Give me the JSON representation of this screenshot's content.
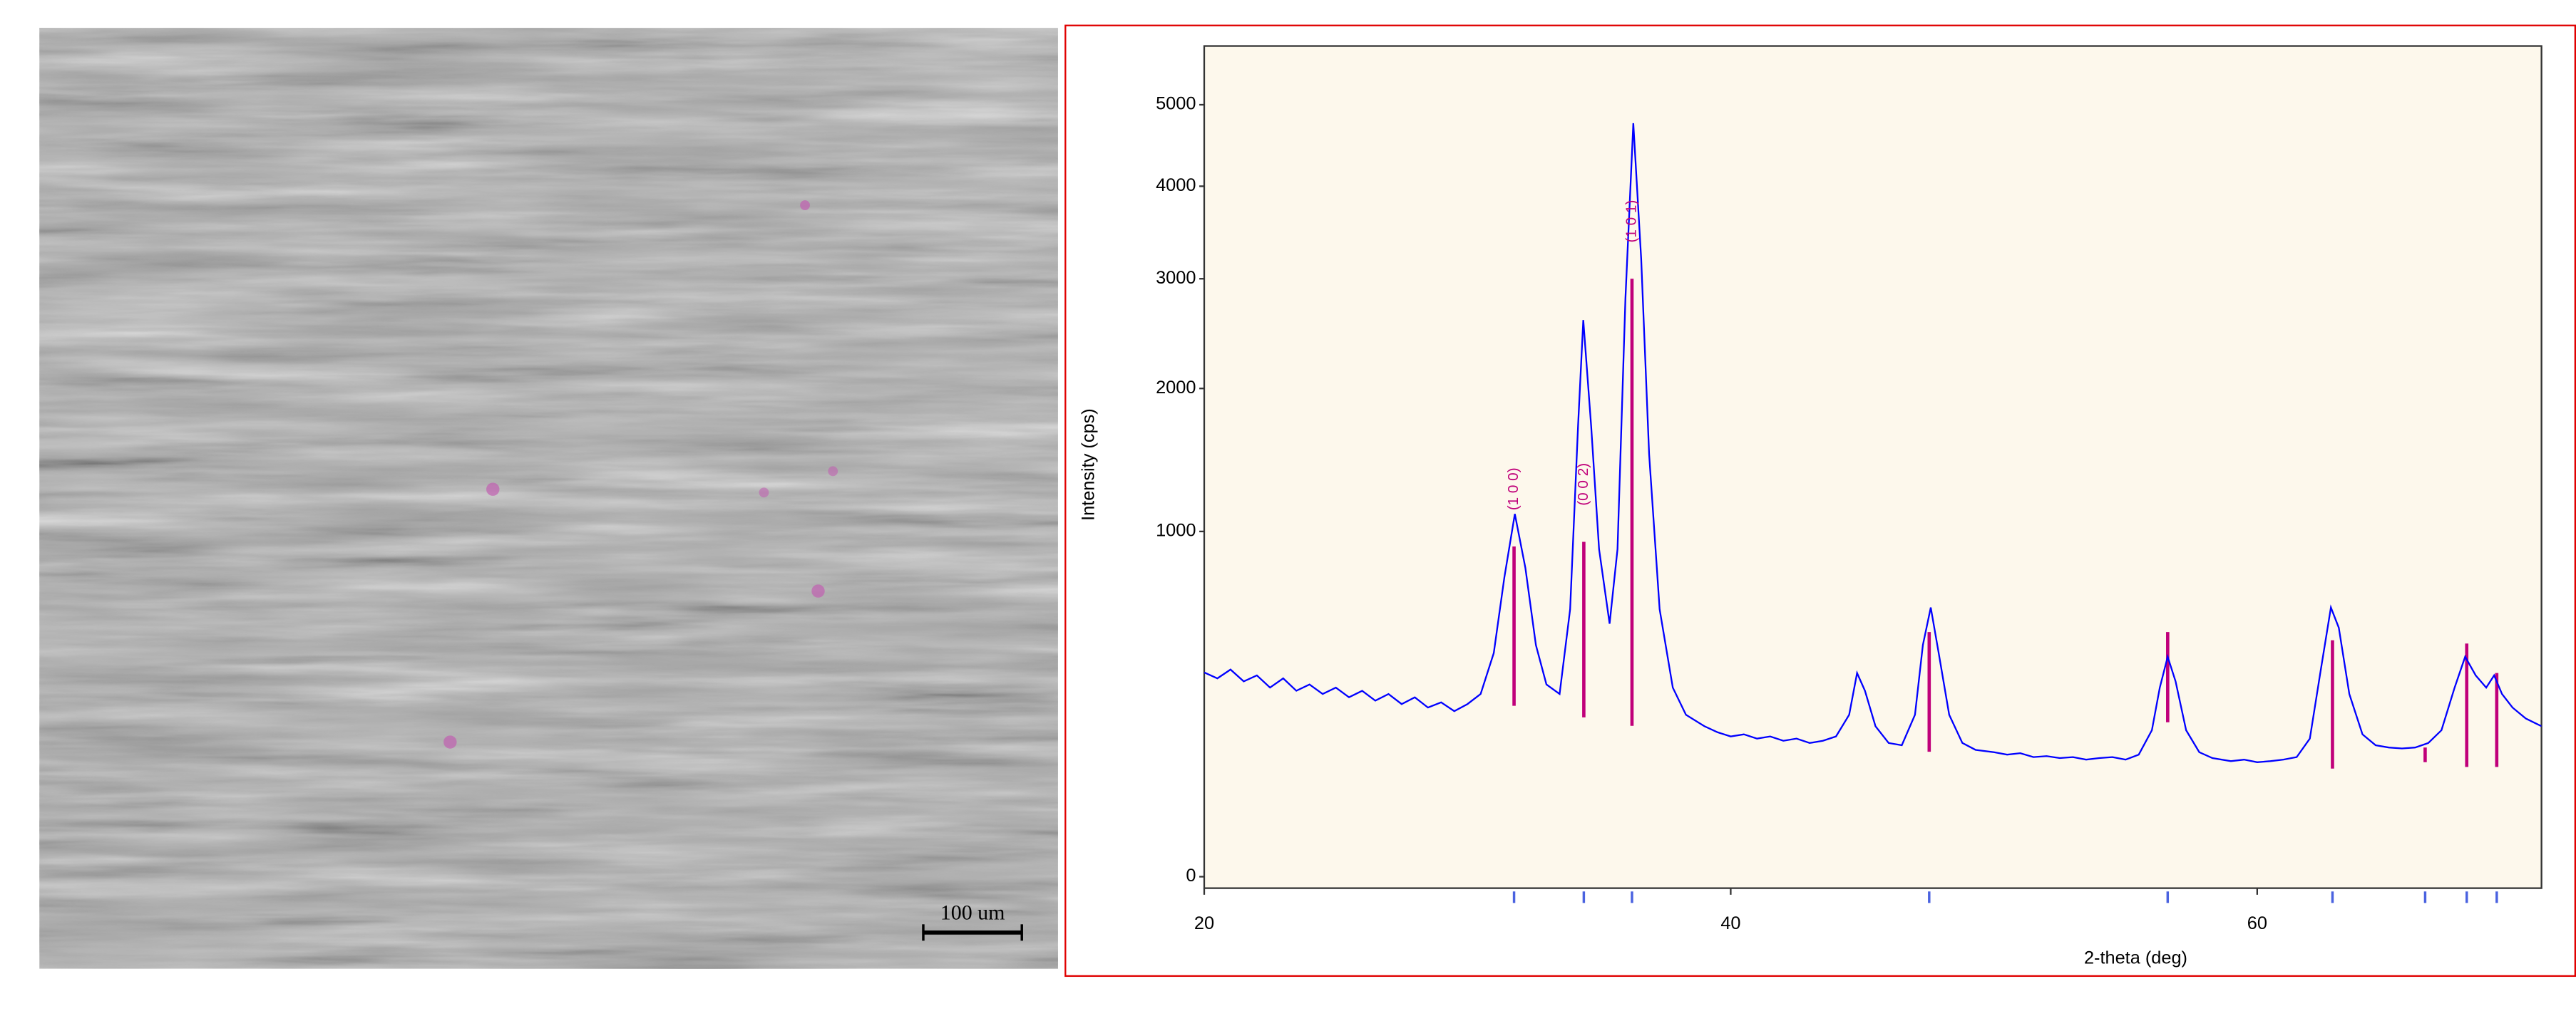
{
  "micrograph": {
    "scale_bar_label": "100 um"
  },
  "chart_data": {
    "type": "line",
    "xlabel": "2-theta (deg)",
    "ylabel": "Intensity (cps)",
    "xlim": [
      20,
      70.8
    ],
    "xticks": [
      20,
      40,
      60
    ],
    "ylim": [
      0,
      5790
    ],
    "yticks": [
      0,
      1000,
      2000,
      3000,
      4000,
      5000
    ],
    "yscale": "sqrt",
    "background": "#fdf8ec",
    "x": [
      20,
      20.5,
      21,
      21.5,
      22,
      22.5,
      23,
      23.5,
      24,
      24.5,
      25,
      25.5,
      26,
      26.5,
      27,
      27.5,
      28,
      28.5,
      29,
      29.5,
      30,
      30.5,
      31,
      31.4,
      31.8,
      32.2,
      32.6,
      33,
      33.5,
      33.9,
      34.2,
      34.4,
      34.7,
      35,
      35.4,
      35.7,
      36,
      36.3,
      36.6,
      36.9,
      37.3,
      37.8,
      38.3,
      39,
      39.5,
      40,
      40.5,
      41,
      41.5,
      42,
      42.5,
      43,
      43.5,
      44,
      44.5,
      44.8,
      45.1,
      45.5,
      46,
      46.5,
      47,
      47.3,
      47.6,
      47.9,
      48.3,
      48.8,
      49.3,
      50,
      50.5,
      51,
      51.5,
      52,
      52.5,
      53,
      53.5,
      54,
      54.5,
      55,
      55.5,
      56,
      56.3,
      56.6,
      56.9,
      57.3,
      57.8,
      58.3,
      59,
      59.5,
      60,
      60.5,
      61,
      61.5,
      62,
      62.4,
      62.8,
      63.1,
      63.5,
      64,
      64.5,
      65,
      65.5,
      66,
      66.5,
      67,
      67.5,
      67.9,
      68.3,
      68.7,
      69,
      69.3,
      69.7,
      70.2,
      70.8
    ],
    "series": [
      {
        "color": "#0000ff",
        "values": [
          350,
          330,
          360,
          320,
          340,
          300,
          330,
          290,
          310,
          280,
          300,
          270,
          290,
          260,
          280,
          250,
          270,
          240,
          255,
          230,
          250,
          280,
          420,
          750,
          1104,
          800,
          450,
          310,
          280,
          600,
          1700,
          2600,
          1700,
          900,
          537,
          900,
          2800,
          4764,
          3200,
          1500,
          600,
          300,
          220,
          190,
          175,
          165,
          170,
          160,
          165,
          155,
          160,
          150,
          155,
          165,
          220,
          348,
          290,
          190,
          150,
          145,
          220,
          450,
          608,
          420,
          220,
          150,
          135,
          130,
          125,
          128,
          120,
          122,
          118,
          120,
          115,
          118,
          120,
          115,
          125,
          180,
          300,
          406,
          320,
          180,
          130,
          118,
          112,
          115,
          110,
          112,
          115,
          120,
          160,
          350,
          608,
          520,
          280,
          170,
          145,
          140,
          138,
          140,
          150,
          180,
          300,
          406,
          340,
          300,
          340,
          280,
          240,
          210,
          190
        ]
      }
    ],
    "reference_peaks": {
      "color": "#c0007a",
      "tick_color": "#4a62e0",
      "x": [
        31.77,
        34.42,
        36.25,
        47.54,
        56.6,
        62.86,
        66.38,
        67.96,
        69.1
      ],
      "values": [
        915,
        941,
        3000,
        502,
        502,
        469,
        140,
        456,
        348
      ],
      "base": [
        245,
        213,
        191,
        131,
        200,
        98,
        110,
        101,
        101
      ],
      "labels": [
        "(1 0 0)",
        "(0 0 2)",
        "(1 0 1)",
        null,
        null,
        null,
        null,
        null,
        null
      ]
    }
  }
}
